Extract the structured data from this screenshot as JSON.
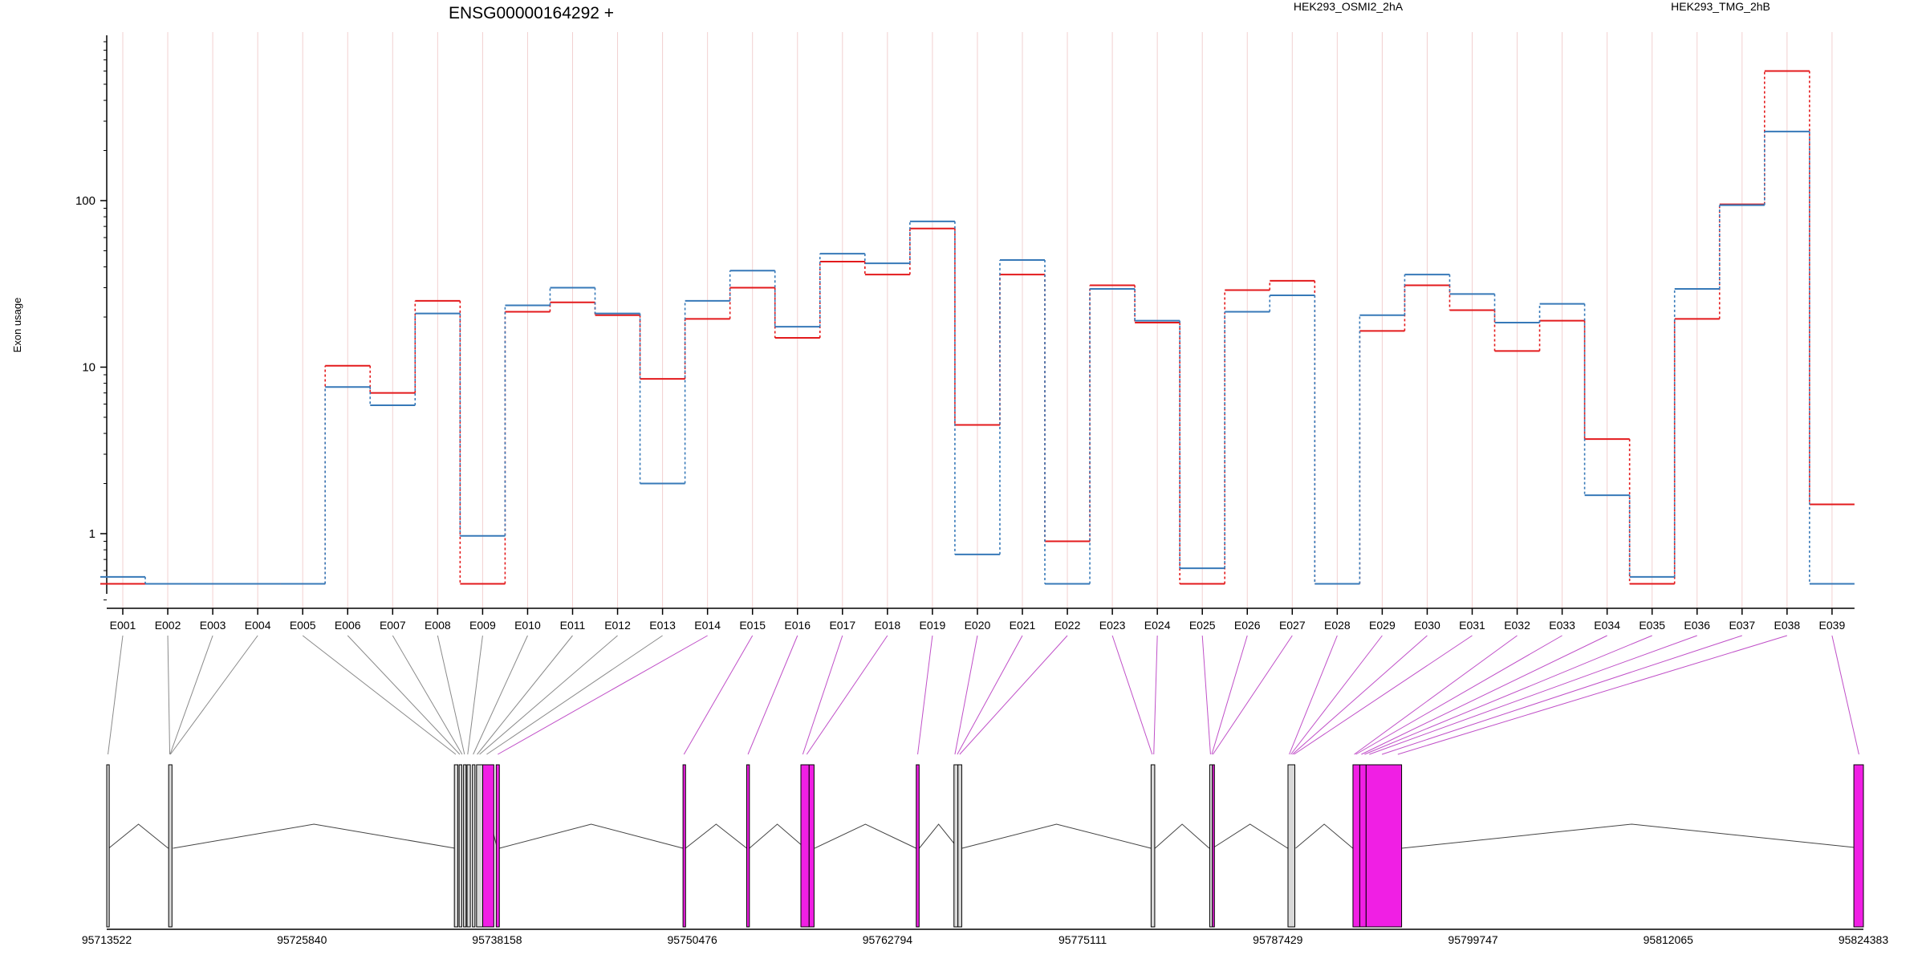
{
  "chart_data": {
    "type": "line",
    "title": "ENSG00000164292 +",
    "ylabel": "Exon usage",
    "yscale": "log",
    "ylim": [
      0.4,
      900
    ],
    "yticks": [
      1,
      10,
      100
    ],
    "legend": "top",
    "categories": [
      "E001",
      "E002",
      "E003",
      "E004",
      "E005",
      "E006",
      "E007",
      "E008",
      "E009",
      "E010",
      "E011",
      "E012",
      "E013",
      "E014",
      "E015",
      "E016",
      "E017",
      "E018",
      "E019",
      "E020",
      "E021",
      "E022",
      "E023",
      "E024",
      "E025",
      "E026",
      "E027",
      "E028",
      "E029",
      "E030",
      "E031",
      "E032",
      "E033",
      "E034",
      "E035",
      "E036",
      "E037",
      "E038",
      "E039"
    ],
    "series": [
      {
        "name": "HEK293_OSMI2_2hA",
        "color": "#e31a1c",
        "values": [
          0.5,
          0.5,
          0.5,
          0.5,
          0.5,
          10.2,
          7.0,
          25,
          0.5,
          21.5,
          24.5,
          20.5,
          8.5,
          19.5,
          30,
          15,
          43,
          36,
          68,
          4.5,
          36,
          0.9,
          31,
          18.5,
          0.5,
          29,
          33,
          0.5,
          16.5,
          31,
          22,
          12.5,
          19,
          3.7,
          0.5,
          19.5,
          95,
          600,
          1.5
        ]
      },
      {
        "name": "HEK293_TMG_2hB",
        "color": "#3779b8",
        "values": [
          0.55,
          0.5,
          0.5,
          0.5,
          0.5,
          7.6,
          5.9,
          21,
          0.97,
          23.5,
          30,
          21,
          2.0,
          25,
          38,
          17.5,
          48,
          42,
          75,
          0.75,
          44,
          0.5,
          29.5,
          19,
          0.62,
          21.5,
          27,
          0.5,
          20.5,
          36,
          27.5,
          18.5,
          24,
          1.7,
          0.55,
          29.5,
          94,
          260,
          0.5
        ]
      }
    ],
    "gene_model": {
      "coordinate_labels": [
        "95713522",
        "95725840",
        "95738158",
        "95750476",
        "95762794",
        "95775111",
        "95787429",
        "95799747",
        "95812065",
        "95824383"
      ],
      "genomic_range": [
        95713522,
        95824383
      ],
      "introns": [
        [
          95713650,
          95717400
        ],
        [
          95717700,
          95735500
        ],
        [
          95737400,
          95738160
        ],
        [
          95738300,
          95749890
        ],
        [
          95750050,
          95753910
        ],
        [
          95754080,
          95757600
        ],
        [
          95758200,
          95764600
        ],
        [
          95764800,
          95767240
        ],
        [
          95767500,
          95779420
        ],
        [
          95779680,
          95783100
        ],
        [
          95783300,
          95788050
        ],
        [
          95788550,
          95792160
        ],
        [
          95795240,
          95824300
        ]
      ],
      "exons": [
        {
          "from": 95713522,
          "to": 95713680,
          "color": "#d9d9d9"
        },
        {
          "from": 95717430,
          "to": 95717640,
          "color": "#d9d9d9"
        },
        {
          "from": 95735460,
          "to": 95735680,
          "color": "#d9d9d9"
        },
        {
          "from": 95735760,
          "to": 95735930,
          "color": "#d9d9d9"
        },
        {
          "from": 95736040,
          "to": 95736200,
          "color": "#d9d9d9"
        },
        {
          "from": 95736260,
          "to": 95736470,
          "color": "#d9d9d9"
        },
        {
          "from": 95736600,
          "to": 95736760,
          "color": "#d9d9d9"
        },
        {
          "from": 95736860,
          "to": 95737250,
          "color": "#d9d9d9"
        },
        {
          "from": 95737250,
          "to": 95737950,
          "color": "#f01fe4"
        },
        {
          "from": 95738100,
          "to": 95738300,
          "color": "#f01fe4"
        },
        {
          "from": 95749890,
          "to": 95750050,
          "color": "#f01fe4"
        },
        {
          "from": 95753910,
          "to": 95754080,
          "color": "#f01fe4"
        },
        {
          "from": 95757330,
          "to": 95757850,
          "color": "#f01fe4"
        },
        {
          "from": 95757850,
          "to": 95758160,
          "color": "#f01fe4"
        },
        {
          "from": 95764610,
          "to": 95764790,
          "color": "#f01fe4"
        },
        {
          "from": 95766990,
          "to": 95767240,
          "color": "#d9d9d9"
        },
        {
          "from": 95767240,
          "to": 95767480,
          "color": "#d9d9d9"
        },
        {
          "from": 95779430,
          "to": 95779660,
          "color": "#d9d9d9"
        },
        {
          "from": 95783130,
          "to": 95783300,
          "color": "#d9d9d9"
        },
        {
          "from": 95783300,
          "to": 95783400,
          "color": "#f01fe4"
        },
        {
          "from": 95788070,
          "to": 95788500,
          "color": "#d9d9d9"
        },
        {
          "from": 95792170,
          "to": 95792600,
          "color": "#f01fe4"
        },
        {
          "from": 95792600,
          "to": 95793000,
          "color": "#f01fe4"
        },
        {
          "from": 95793000,
          "to": 95795240,
          "color": "#f01fe4"
        },
        {
          "from": 95823780,
          "to": 95824383,
          "color": "#f01fe4"
        }
      ],
      "exon_bin_positions": [
        95713600,
        95717500,
        95717520,
        95717540,
        95735550,
        95735800,
        95735950,
        95736100,
        95736300,
        95736650,
        95736900,
        95737050,
        95737500,
        95738200,
        95749950,
        95753990,
        95757450,
        95757700,
        95764700,
        95767050,
        95767200,
        95767350,
        95779500,
        95779600,
        95783180,
        95783260,
        95783330,
        95788150,
        95788250,
        95788350,
        95788450,
        95792250,
        95792350,
        95792700,
        95792900,
        95793200,
        95794000,
        95795000,
        95824100
      ],
      "highlight_from_bin": 13
    }
  }
}
